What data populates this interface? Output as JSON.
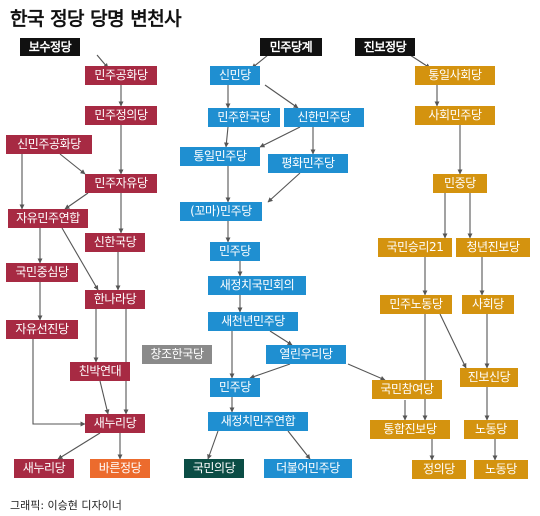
{
  "title": "한국 정당 당명 변천사",
  "credit": "그래픽: 이승현 디자이너",
  "colors": {
    "conservative": "#a72a43",
    "democratic": "#1f8fd1",
    "progressive": "#d4930f",
    "neutral": "#8a8a8a",
    "peoples_party": "#0b4d45",
    "bareun": "#ec6b2d"
  },
  "headers": {
    "conservative": "보수정당",
    "democratic": "민주당계",
    "progressive": "진보정당"
  },
  "parties": {
    "minju_gonghwa": "민주공화당",
    "minju_jeongui": "민주정의당",
    "sinminju_gonghwa": "신민주공화당",
    "minju_jayu": "민주자유당",
    "jayu_minju_yeonhap": "자유민주연합",
    "sinhanguk": "신한국당",
    "gukmin_jungsim": "국민중심당",
    "hannara": "한나라당",
    "jayu_seonjin": "자유선진당",
    "chinbak_yeondae": "친박연대",
    "saenuri": "새누리당",
    "saenuri_new": "새누리당",
    "bareun": "바른정당",
    "sinmin": "신민당",
    "minju_hanguk": "민주한국당",
    "sinhan_minju": "신한민주당",
    "tongil_minju": "통일민주당",
    "pyeonghwa_minju": "평화민주당",
    "kkoma_minju": "(꼬마)민주당",
    "minju_1": "민주당",
    "saejeongchi_gukmin": "새정치국민회의",
    "saecheonnyeon_minju": "새천년민주당",
    "changjo_hanguk": "창조한국당",
    "yeollin_uri": "열린우리당",
    "minju_2": "민주당",
    "saejeongchi_minju_yeonhap": "새정치민주연합",
    "gukmin_party": "국민의당",
    "deobureo_minju": "더불어민주당",
    "gukmin_chamyeo": "국민참여당",
    "tongil_sahoe": "통일사회당",
    "sahoe_minju": "사회민주당",
    "minjung": "민중당",
    "gukmin_seungni": "국민승리21",
    "cheongnyeon_jinbo": "청년진보당",
    "minju_nodong": "민주노동당",
    "sahoe": "사회당",
    "jinbo_sin": "진보신당",
    "tonghap_jinbo": "통합진보당",
    "nodong": "노동당",
    "jeongui": "정의당",
    "nodong_new": "노동당"
  }
}
